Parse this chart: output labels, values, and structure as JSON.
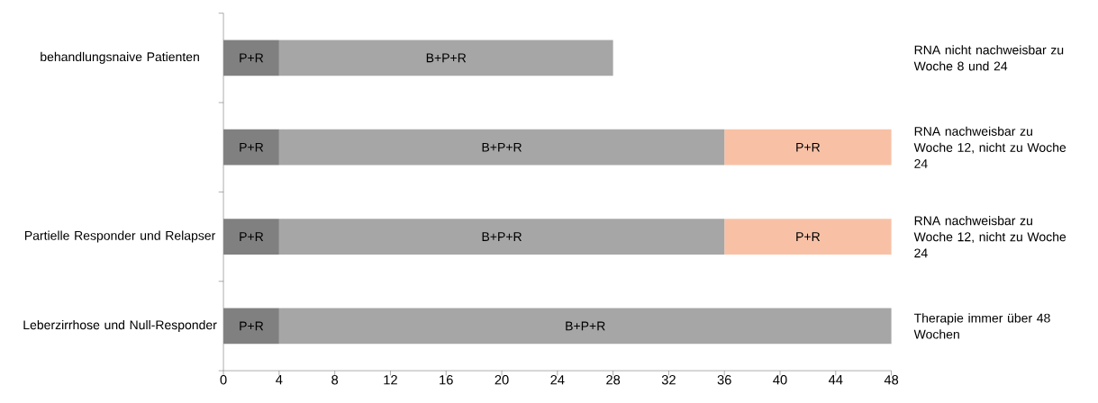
{
  "chart_data": {
    "type": "bar",
    "orientation": "horizontal",
    "stacked": true,
    "categories": [
      "behandlungsnaive Patienten",
      null,
      "Partielle Responder und Relapser",
      "Leberzirrhose und Null-Responder"
    ],
    "series": [
      {
        "color": "#808080",
        "values": [
          4,
          4,
          4,
          4
        ],
        "value_labels": [
          "P+R",
          "P+R",
          "P+R",
          "P+R"
        ]
      },
      {
        "color": "#a6a6a6",
        "values": [
          24,
          32,
          32,
          44
        ],
        "value_labels": [
          "B+P+R",
          "B+P+R",
          "B+P+R",
          "B+P+R"
        ]
      },
      {
        "color": "#f8c1a6",
        "values": [
          null,
          12,
          12,
          null
        ],
        "value_labels": [
          null,
          "P+R",
          "P+R",
          null
        ]
      }
    ],
    "xlim": [
      0,
      48
    ],
    "xticks": [
      0,
      4,
      8,
      12,
      16,
      20,
      24,
      28,
      32,
      36,
      40,
      44,
      48
    ],
    "grid": false,
    "annotations": [
      "RNA nicht nachweisbar zu Woche 8 und 24",
      "RNA nachweisbar zu Woche 12, nicht zu Woche 24",
      "RNA nachweisbar zu Woche 12, nicht zu Woche 24",
      "Therapie immer über 48 Wochen"
    ]
  }
}
